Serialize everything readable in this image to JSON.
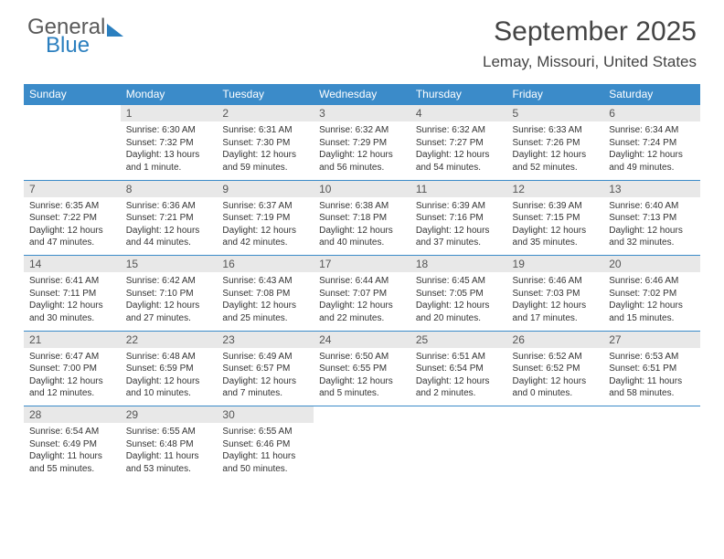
{
  "brand": {
    "word1": "General",
    "word2": "Blue"
  },
  "title": "September 2025",
  "location": "Lemay, Missouri, United States",
  "colors": {
    "header_bg": "#3b8bc9",
    "header_text": "#ffffff",
    "daynum_bg": "#e8e8e8",
    "row_divider": "#3b8bc9",
    "body_text": "#333333",
    "title_text": "#444444",
    "brand_gray": "#5a5a5a",
    "brand_blue": "#2b7fbf"
  },
  "weekdays": [
    "Sunday",
    "Monday",
    "Tuesday",
    "Wednesday",
    "Thursday",
    "Friday",
    "Saturday"
  ],
  "weeks": [
    [
      null,
      {
        "n": "1",
        "sr": "6:30 AM",
        "ss": "7:32 PM",
        "dl": "13 hours and 1 minute."
      },
      {
        "n": "2",
        "sr": "6:31 AM",
        "ss": "7:30 PM",
        "dl": "12 hours and 59 minutes."
      },
      {
        "n": "3",
        "sr": "6:32 AM",
        "ss": "7:29 PM",
        "dl": "12 hours and 56 minutes."
      },
      {
        "n": "4",
        "sr": "6:32 AM",
        "ss": "7:27 PM",
        "dl": "12 hours and 54 minutes."
      },
      {
        "n": "5",
        "sr": "6:33 AM",
        "ss": "7:26 PM",
        "dl": "12 hours and 52 minutes."
      },
      {
        "n": "6",
        "sr": "6:34 AM",
        "ss": "7:24 PM",
        "dl": "12 hours and 49 minutes."
      }
    ],
    [
      {
        "n": "7",
        "sr": "6:35 AM",
        "ss": "7:22 PM",
        "dl": "12 hours and 47 minutes."
      },
      {
        "n": "8",
        "sr": "6:36 AM",
        "ss": "7:21 PM",
        "dl": "12 hours and 44 minutes."
      },
      {
        "n": "9",
        "sr": "6:37 AM",
        "ss": "7:19 PM",
        "dl": "12 hours and 42 minutes."
      },
      {
        "n": "10",
        "sr": "6:38 AM",
        "ss": "7:18 PM",
        "dl": "12 hours and 40 minutes."
      },
      {
        "n": "11",
        "sr": "6:39 AM",
        "ss": "7:16 PM",
        "dl": "12 hours and 37 minutes."
      },
      {
        "n": "12",
        "sr": "6:39 AM",
        "ss": "7:15 PM",
        "dl": "12 hours and 35 minutes."
      },
      {
        "n": "13",
        "sr": "6:40 AM",
        "ss": "7:13 PM",
        "dl": "12 hours and 32 minutes."
      }
    ],
    [
      {
        "n": "14",
        "sr": "6:41 AM",
        "ss": "7:11 PM",
        "dl": "12 hours and 30 minutes."
      },
      {
        "n": "15",
        "sr": "6:42 AM",
        "ss": "7:10 PM",
        "dl": "12 hours and 27 minutes."
      },
      {
        "n": "16",
        "sr": "6:43 AM",
        "ss": "7:08 PM",
        "dl": "12 hours and 25 minutes."
      },
      {
        "n": "17",
        "sr": "6:44 AM",
        "ss": "7:07 PM",
        "dl": "12 hours and 22 minutes."
      },
      {
        "n": "18",
        "sr": "6:45 AM",
        "ss": "7:05 PM",
        "dl": "12 hours and 20 minutes."
      },
      {
        "n": "19",
        "sr": "6:46 AM",
        "ss": "7:03 PM",
        "dl": "12 hours and 17 minutes."
      },
      {
        "n": "20",
        "sr": "6:46 AM",
        "ss": "7:02 PM",
        "dl": "12 hours and 15 minutes."
      }
    ],
    [
      {
        "n": "21",
        "sr": "6:47 AM",
        "ss": "7:00 PM",
        "dl": "12 hours and 12 minutes."
      },
      {
        "n": "22",
        "sr": "6:48 AM",
        "ss": "6:59 PM",
        "dl": "12 hours and 10 minutes."
      },
      {
        "n": "23",
        "sr": "6:49 AM",
        "ss": "6:57 PM",
        "dl": "12 hours and 7 minutes."
      },
      {
        "n": "24",
        "sr": "6:50 AM",
        "ss": "6:55 PM",
        "dl": "12 hours and 5 minutes."
      },
      {
        "n": "25",
        "sr": "6:51 AM",
        "ss": "6:54 PM",
        "dl": "12 hours and 2 minutes."
      },
      {
        "n": "26",
        "sr": "6:52 AM",
        "ss": "6:52 PM",
        "dl": "12 hours and 0 minutes."
      },
      {
        "n": "27",
        "sr": "6:53 AM",
        "ss": "6:51 PM",
        "dl": "11 hours and 58 minutes."
      }
    ],
    [
      {
        "n": "28",
        "sr": "6:54 AM",
        "ss": "6:49 PM",
        "dl": "11 hours and 55 minutes."
      },
      {
        "n": "29",
        "sr": "6:55 AM",
        "ss": "6:48 PM",
        "dl": "11 hours and 53 minutes."
      },
      {
        "n": "30",
        "sr": "6:55 AM",
        "ss": "6:46 PM",
        "dl": "11 hours and 50 minutes."
      },
      null,
      null,
      null,
      null
    ]
  ],
  "labels": {
    "sunrise": "Sunrise:",
    "sunset": "Sunset:",
    "daylight": "Daylight:"
  }
}
